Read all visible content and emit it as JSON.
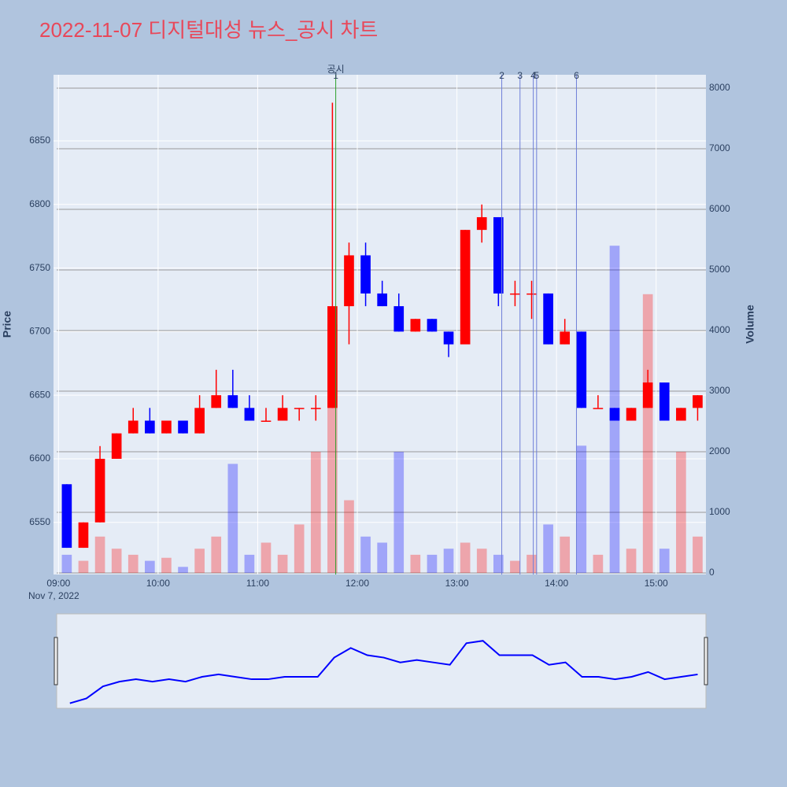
{
  "chart_data": {
    "type": "candlestick",
    "title": "2022-11-07 디지털대성 뉴스_공시 차트",
    "y_label": "Price",
    "y2_label": "Volume",
    "x_date_label": "Nov 7, 2022",
    "up_color": "#ff0000",
    "down_color": "#0000ff",
    "x": [
      "09:00",
      "09:10",
      "09:20",
      "09:30",
      "09:40",
      "09:50",
      "10:00",
      "10:10",
      "10:20",
      "10:30",
      "10:40",
      "10:50",
      "11:00",
      "11:10",
      "11:20",
      "11:30",
      "11:40",
      "11:50",
      "12:00",
      "12:10",
      "12:20",
      "12:30",
      "12:40",
      "12:50",
      "13:00",
      "13:10",
      "13:20",
      "13:30",
      "13:40",
      "13:50",
      "14:00",
      "14:10",
      "14:20",
      "14:30",
      "14:40",
      "14:50",
      "15:00",
      "15:10",
      "15:20"
    ],
    "open": [
      6580,
      6530,
      6550,
      6600,
      6620,
      6630,
      6620,
      6630,
      6620,
      6640,
      6650,
      6640,
      6630,
      6630,
      6640,
      6640,
      6640,
      6720,
      6760,
      6730,
      6720,
      6700,
      6710,
      6700,
      6690,
      6780,
      6790,
      6730,
      6730,
      6730,
      6690,
      6700,
      6640,
      6640,
      6630,
      6640,
      6660,
      6630,
      6640
    ],
    "high": [
      6580,
      6550,
      6610,
      6620,
      6640,
      6640,
      6630,
      6630,
      6650,
      6670,
      6670,
      6650,
      6640,
      6650,
      6640,
      6650,
      6880,
      6770,
      6770,
      6740,
      6730,
      6710,
      6710,
      6700,
      6780,
      6800,
      6790,
      6740,
      6740,
      6730,
      6710,
      6700,
      6650,
      6640,
      6640,
      6670,
      6660,
      6640,
      6650
    ],
    "low": [
      6530,
      6530,
      6550,
      6600,
      6620,
      6620,
      6620,
      6620,
      6620,
      6640,
      6640,
      6630,
      6630,
      6630,
      6630,
      6630,
      6640,
      6690,
      6720,
      6720,
      6700,
      6700,
      6700,
      6680,
      6690,
      6770,
      6720,
      6720,
      6710,
      6690,
      6690,
      6640,
      6640,
      6630,
      6630,
      6640,
      6630,
      6630,
      6630
    ],
    "close": [
      6530,
      6550,
      6600,
      6620,
      6630,
      6620,
      6630,
      6620,
      6640,
      6650,
      6640,
      6630,
      6630,
      6640,
      6640,
      6640,
      6720,
      6760,
      6730,
      6720,
      6700,
      6710,
      6700,
      6690,
      6780,
      6790,
      6730,
      6730,
      6730,
      6690,
      6700,
      6640,
      6640,
      6630,
      6640,
      6660,
      6630,
      6640,
      6650
    ],
    "volume": [
      300,
      200,
      600,
      400,
      300,
      200,
      250,
      100,
      400,
      600,
      1800,
      300,
      500,
      300,
      800,
      2000,
      4100,
      1200,
      600,
      500,
      2000,
      300,
      300,
      400,
      500,
      400,
      300,
      200,
      300,
      800,
      600,
      2100,
      300,
      5400,
      400,
      4600,
      400,
      2000,
      600
    ],
    "xlim": [
      "08:57",
      "15:30"
    ],
    "xticks": [
      "09:00",
      "10:00",
      "11:00",
      "12:00",
      "13:00",
      "14:00",
      "15:00"
    ],
    "ylim": [
      6509,
      6902
    ],
    "yticks": [
      6550,
      6600,
      6650,
      6700,
      6750,
      6800,
      6850
    ],
    "y2lim": [
      -26,
      8221
    ],
    "y2ticks": [
      0,
      1000,
      2000,
      3000,
      4000,
      5000,
      6000,
      7000,
      8000
    ],
    "annotation_title": "공시",
    "annotations": [
      {
        "x": "11:47",
        "label": "1",
        "color": "#2ca02c"
      },
      {
        "x": "13:27",
        "label": "2",
        "color": "#6f7fd8"
      },
      {
        "x": "13:38",
        "label": "3",
        "color": "#6f7fd8"
      },
      {
        "x": "13:46",
        "label": "4",
        "color": "#6f7fd8"
      },
      {
        "x": "13:48",
        "label": "5",
        "color": "#6f7fd8"
      },
      {
        "x": "14:12",
        "label": "6",
        "color": "#6f7fd8"
      }
    ]
  }
}
